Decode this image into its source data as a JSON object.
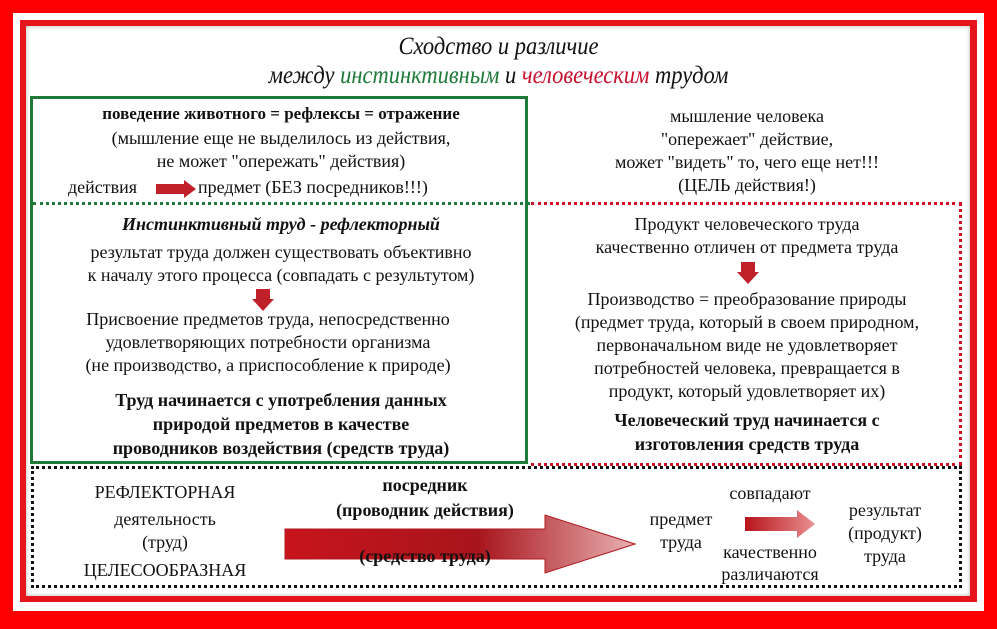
{
  "title": {
    "line1": "Сходство и различие",
    "line2_pre": "между",
    "line2_green": "инстинктивным",
    "line2_mid": "и",
    "line2_red": "человеческим",
    "line2_post": "трудом"
  },
  "left_top": {
    "heading": "поведение животного = рефлексы = отражение",
    "note1": "(мышление еще не выделилось из действия,",
    "note2": "не может \"опережать\" действия)",
    "flow_from": "действия",
    "flow_to": "предмет (БЕЗ посредников!!!)"
  },
  "right_top": {
    "lines": [
      "мышление человека",
      "\"опережает\" действие,",
      "может \"видеть\" то, чего еще нет!!!",
      "(ЦЕЛЬ действия!)"
    ]
  },
  "left_mid": {
    "heading": "Инстинктивный труд - рефлекторный",
    "lines1": [
      "результат труда должен существовать  объективно",
      "к началу этого процесса (совпадать с результутом)"
    ],
    "lines2": [
      "Присвоение предметов труда, непосредственно",
      "удовлетворяющих потребности организма",
      "(не производство, а приспособление к природе)"
    ],
    "bold": [
      "Труд начинается с употребления данных",
      "природой  предметов в качестве",
      "проводников воздействия (средств труда)"
    ]
  },
  "right_mid": {
    "lines1": [
      "Продукт человеческого труда",
      "качественно отличен от предмета труда"
    ],
    "lines2": [
      "Производство = преобразование природы",
      "(предмет труда, который в своем природном,",
      "первоначальном виде не удовлетворяет",
      "потребностей человека, превращается в",
      "продукт, который удовлетворяет их)"
    ],
    "bold": [
      "Человеческий труд начинается с",
      "изготовления средств труда"
    ]
  },
  "bottom": {
    "reflex": "РЕФЛЕКТОРНАЯ",
    "activity": "деятельность",
    "labor": "(труд)",
    "purposeful": "ЦЕЛЕСООБРАЗНАЯ",
    "mediator": "посредник",
    "conductor": "(проводник действия)",
    "means": "(средство труда)",
    "object1": "предмет",
    "object2": "труда",
    "coincide": "совпадают",
    "differ1": "качественно",
    "differ2": "различаются",
    "result1": "результат",
    "result2": "(продукт)",
    "result3": "труда"
  },
  "colors": {
    "frame": "#ff0000",
    "green": "#1f7a3a",
    "red": "#c8102e"
  }
}
